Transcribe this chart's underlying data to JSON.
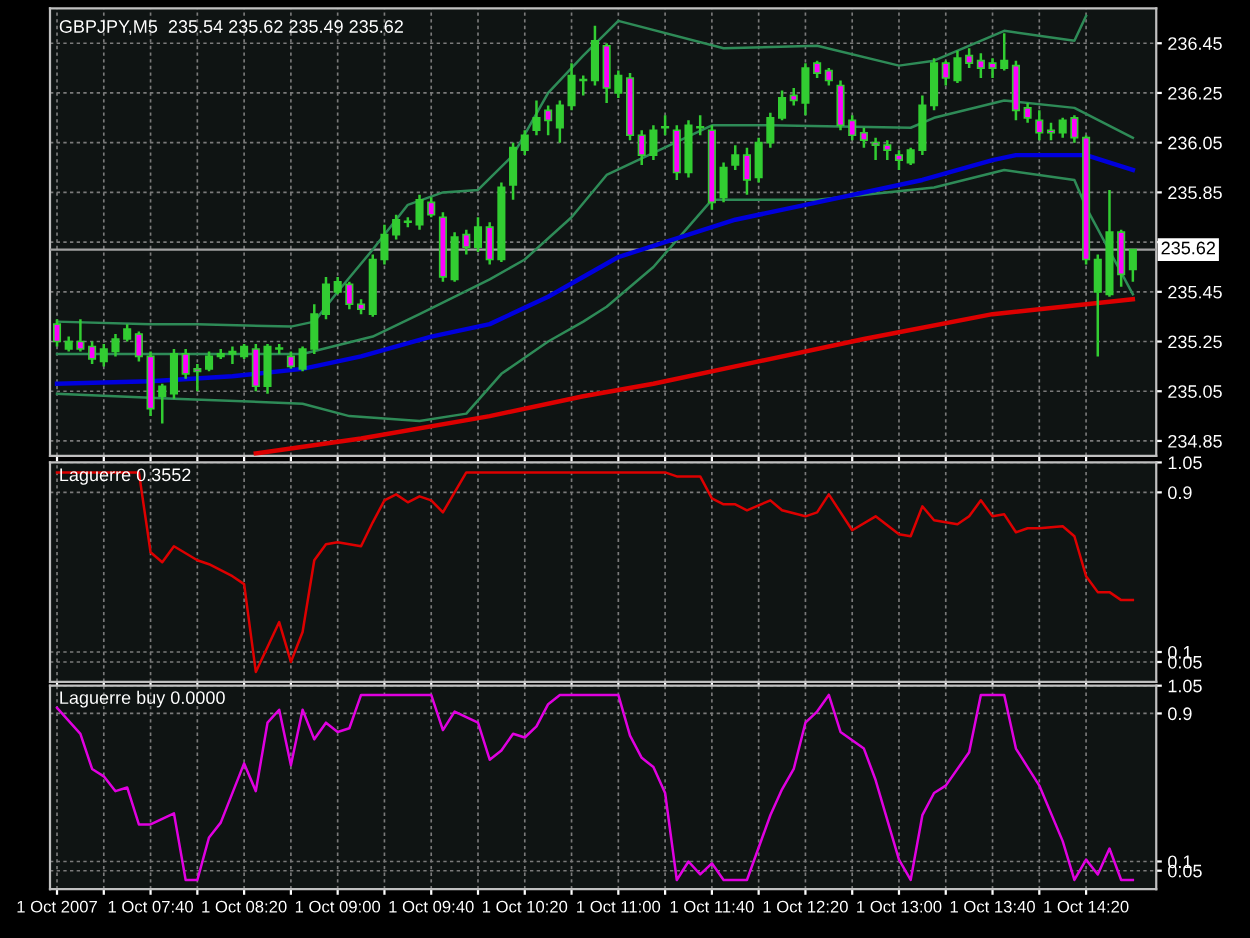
{
  "chart_data": [
    {
      "type": "candlestick",
      "title": "GBPJPY,M5  235.54 235.62 235.49 235.62",
      "tick_labels": "y",
      "grid": true,
      "x": [
        "2007-10-01T07:00",
        "2007-10-01T07:05",
        "2007-10-01T07:10",
        "2007-10-01T07:15",
        "2007-10-01T07:20",
        "2007-10-01T07:25",
        "2007-10-01T07:30",
        "2007-10-01T07:35",
        "2007-10-01T07:40",
        "2007-10-01T07:45",
        "2007-10-01T07:50",
        "2007-10-01T07:55",
        "2007-10-01T08:00",
        "2007-10-01T08:05",
        "2007-10-01T08:10",
        "2007-10-01T08:15",
        "2007-10-01T08:20",
        "2007-10-01T08:25",
        "2007-10-01T08:30",
        "2007-10-01T08:35",
        "2007-10-01T08:40",
        "2007-10-01T08:45",
        "2007-10-01T08:50",
        "2007-10-01T08:55",
        "2007-10-01T09:00",
        "2007-10-01T09:05",
        "2007-10-01T09:10",
        "2007-10-01T09:15",
        "2007-10-01T09:20",
        "2007-10-01T09:25",
        "2007-10-01T09:30",
        "2007-10-01T09:35",
        "2007-10-01T09:40",
        "2007-10-01T09:45",
        "2007-10-01T09:50",
        "2007-10-01T09:55",
        "2007-10-01T10:00",
        "2007-10-01T10:05",
        "2007-10-01T10:10",
        "2007-10-01T10:15",
        "2007-10-01T10:20",
        "2007-10-01T10:25",
        "2007-10-01T10:30",
        "2007-10-01T10:35",
        "2007-10-01T10:40",
        "2007-10-01T10:45",
        "2007-10-01T10:50",
        "2007-10-01T10:55",
        "2007-10-01T11:00",
        "2007-10-01T11:05",
        "2007-10-01T11:10",
        "2007-10-01T11:15",
        "2007-10-01T11:20",
        "2007-10-01T11:25",
        "2007-10-01T11:30",
        "2007-10-01T11:35",
        "2007-10-01T11:40",
        "2007-10-01T11:45",
        "2007-10-01T11:50",
        "2007-10-01T11:55",
        "2007-10-01T12:00",
        "2007-10-01T12:05",
        "2007-10-01T12:10",
        "2007-10-01T12:15",
        "2007-10-01T12:20",
        "2007-10-01T12:25",
        "2007-10-01T12:30",
        "2007-10-01T12:35",
        "2007-10-01T12:40",
        "2007-10-01T12:45",
        "2007-10-01T12:50",
        "2007-10-01T12:55",
        "2007-10-01T13:00",
        "2007-10-01T13:05",
        "2007-10-01T13:10",
        "2007-10-01T13:15",
        "2007-10-01T13:20",
        "2007-10-01T13:25",
        "2007-10-01T13:30",
        "2007-10-01T13:35",
        "2007-10-01T13:40",
        "2007-10-01T13:45",
        "2007-10-01T13:50",
        "2007-10-01T13:55",
        "2007-10-01T14:00",
        "2007-10-01T14:05",
        "2007-10-01T14:10",
        "2007-10-01T14:15",
        "2007-10-01T14:20",
        "2007-10-01T14:25",
        "2007-10-01T14:30",
        "2007-10-01T14:35",
        "2007-10-01T14:40"
      ],
      "ohlc": [
        [
          235.32,
          235.34,
          235.23,
          235.25
        ],
        [
          235.22,
          235.27,
          235.21,
          235.25
        ],
        [
          235.25,
          235.34,
          235.21,
          235.22
        ],
        [
          235.23,
          235.25,
          235.16,
          235.18
        ],
        [
          235.17,
          235.24,
          235.15,
          235.22
        ],
        [
          235.21,
          235.28,
          235.19,
          235.26
        ],
        [
          235.26,
          235.32,
          235.25,
          235.3
        ],
        [
          235.28,
          235.29,
          235.17,
          235.19
        ],
        [
          235.19,
          235.21,
          234.95,
          234.98
        ],
        [
          235.03,
          235.08,
          234.92,
          235.07
        ],
        [
          235.04,
          235.22,
          235.02,
          235.2
        ],
        [
          235.2,
          235.22,
          235.1,
          235.12
        ],
        [
          235.14,
          235.16,
          235.05,
          235.13
        ],
        [
          235.14,
          235.21,
          235.13,
          235.19
        ],
        [
          235.19,
          235.22,
          235.18,
          235.2
        ],
        [
          235.2,
          235.23,
          235.16,
          235.21
        ],
        [
          235.19,
          235.24,
          235.18,
          235.23
        ],
        [
          235.22,
          235.24,
          235.05,
          235.07
        ],
        [
          235.07,
          235.24,
          235.04,
          235.23
        ],
        [
          235.22,
          235.24,
          235.2,
          235.22
        ],
        [
          235.19,
          235.21,
          235.14,
          235.15
        ],
        [
          235.14,
          235.23,
          235.13,
          235.22
        ],
        [
          235.22,
          235.4,
          235.2,
          235.36
        ],
        [
          235.36,
          235.51,
          235.34,
          235.48
        ],
        [
          235.45,
          235.51,
          235.44,
          235.49
        ],
        [
          235.48,
          235.49,
          235.38,
          235.4
        ],
        [
          235.4,
          235.42,
          235.36,
          235.38
        ],
        [
          235.36,
          235.6,
          235.35,
          235.58
        ],
        [
          235.58,
          235.72,
          235.56,
          235.68
        ],
        [
          235.68,
          235.76,
          235.66,
          235.74
        ],
        [
          235.73,
          235.75,
          235.71,
          235.73
        ],
        [
          235.72,
          235.84,
          235.7,
          235.82
        ],
        [
          235.81,
          235.83,
          235.75,
          235.76
        ],
        [
          235.75,
          235.77,
          235.49,
          235.51
        ],
        [
          235.5,
          235.69,
          235.49,
          235.67
        ],
        [
          235.68,
          235.7,
          235.6,
          235.63
        ],
        [
          235.63,
          235.75,
          235.61,
          235.71
        ],
        [
          235.71,
          235.73,
          235.56,
          235.58
        ],
        [
          235.58,
          235.89,
          235.57,
          235.87
        ],
        [
          235.88,
          236.05,
          235.82,
          236.03
        ],
        [
          236.02,
          236.1,
          236.0,
          236.08
        ],
        [
          236.1,
          236.22,
          236.08,
          236.15
        ],
        [
          236.18,
          236.2,
          236.08,
          236.14
        ],
        [
          236.11,
          236.22,
          236.05,
          236.2
        ],
        [
          236.2,
          236.37,
          236.18,
          236.32
        ],
        [
          236.3,
          236.32,
          236.24,
          236.3
        ],
        [
          236.3,
          236.52,
          236.28,
          236.46
        ],
        [
          236.44,
          236.45,
          236.21,
          236.27
        ],
        [
          236.25,
          236.34,
          236.23,
          236.32
        ],
        [
          236.31,
          236.33,
          236.06,
          236.08
        ],
        [
          236.08,
          236.1,
          235.96,
          236.0
        ],
        [
          236.0,
          236.12,
          235.98,
          236.1
        ],
        [
          236.11,
          236.16,
          236.08,
          236.11
        ],
        [
          236.1,
          236.12,
          235.9,
          235.93
        ],
        [
          235.93,
          236.14,
          235.91,
          236.12
        ],
        [
          236.11,
          236.16,
          236.08,
          236.11
        ],
        [
          236.1,
          236.12,
          235.78,
          235.81
        ],
        [
          235.83,
          235.97,
          235.81,
          235.95
        ],
        [
          235.96,
          236.04,
          235.94,
          236.0
        ],
        [
          236.0,
          236.03,
          235.84,
          235.9
        ],
        [
          235.91,
          236.07,
          235.89,
          236.05
        ],
        [
          236.05,
          236.17,
          236.03,
          236.15
        ],
        [
          236.15,
          236.26,
          236.14,
          236.23
        ],
        [
          236.24,
          236.27,
          236.2,
          236.22
        ],
        [
          236.21,
          236.37,
          236.16,
          236.35
        ],
        [
          236.37,
          236.38,
          236.31,
          236.33
        ],
        [
          236.34,
          236.35,
          236.28,
          236.3
        ],
        [
          236.28,
          236.3,
          236.1,
          236.12
        ],
        [
          236.14,
          236.16,
          236.06,
          236.08
        ],
        [
          236.09,
          236.11,
          236.03,
          236.06
        ],
        [
          236.05,
          236.07,
          235.98,
          236.04
        ],
        [
          236.04,
          236.06,
          235.98,
          236.02
        ],
        [
          236.0,
          236.02,
          235.94,
          235.98
        ],
        [
          235.97,
          236.03,
          235.96,
          236.02
        ],
        [
          236.02,
          236.24,
          236.0,
          236.2
        ],
        [
          236.2,
          236.39,
          236.18,
          236.37
        ],
        [
          236.37,
          236.38,
          236.28,
          236.31
        ],
        [
          236.3,
          236.42,
          236.29,
          236.39
        ],
        [
          236.4,
          236.43,
          236.35,
          236.37
        ],
        [
          236.38,
          236.41,
          236.31,
          236.35
        ],
        [
          236.37,
          236.39,
          236.31,
          236.35
        ],
        [
          236.35,
          236.49,
          236.34,
          236.38
        ],
        [
          236.36,
          236.38,
          236.14,
          236.18
        ],
        [
          236.19,
          236.21,
          236.13,
          236.15
        ],
        [
          236.14,
          236.18,
          236.06,
          236.09
        ],
        [
          236.1,
          236.13,
          236.06,
          236.09
        ],
        [
          236.09,
          236.15,
          236.07,
          236.14
        ],
        [
          236.15,
          236.16,
          236.05,
          236.07
        ],
        [
          236.07,
          236.08,
          235.56,
          235.58
        ],
        [
          235.45,
          235.6,
          235.19,
          235.58
        ],
        [
          235.44,
          235.86,
          235.43,
          235.69
        ],
        [
          235.69,
          235.7,
          235.47,
          235.52
        ],
        [
          235.54,
          235.62,
          235.49,
          235.62
        ]
      ],
      "series": [
        {
          "type": "line",
          "color": "#2e8b57",
          "x": [
            "2007-10-01T07:00",
            "2007-10-01T07:40",
            "2007-10-01T08:00",
            "2007-10-01T08:40",
            "2007-10-01T08:50",
            "2007-10-01T09:00",
            "2007-10-01T09:15",
            "2007-10-01T09:30",
            "2007-10-01T09:45",
            "2007-10-01T10:00",
            "2007-10-01T10:15",
            "2007-10-01T10:30",
            "2007-10-01T10:45",
            "2007-10-01T11:00",
            "2007-10-01T11:45",
            "2007-10-01T12:25",
            "2007-10-01T13:00",
            "2007-10-01T13:15",
            "2007-10-01T13:45",
            "2007-10-01T14:15",
            "2007-10-01T14:20"
          ],
          "values": [
            235.33,
            235.32,
            235.32,
            235.31,
            235.33,
            235.45,
            235.62,
            235.8,
            235.85,
            235.86,
            236.0,
            236.25,
            236.4,
            236.54,
            236.43,
            236.44,
            236.36,
            236.38,
            236.5,
            236.46,
            236.56
          ]
        },
        {
          "type": "line",
          "color": "#2e8b57",
          "x": [
            "2007-10-01T07:00",
            "2007-10-01T07:50",
            "2007-10-01T08:45",
            "2007-10-01T09:15",
            "2007-10-01T09:35",
            "2007-10-01T10:05",
            "2007-10-01T10:20",
            "2007-10-01T10:40",
            "2007-10-01T10:55",
            "2007-10-01T11:40",
            "2007-10-01T12:05",
            "2007-10-01T13:05",
            "2007-10-01T13:15",
            "2007-10-01T13:45",
            "2007-10-01T14:15",
            "2007-10-01T14:40"
          ],
          "values": [
            235.2,
            235.2,
            235.2,
            235.27,
            235.36,
            235.5,
            235.58,
            235.75,
            235.92,
            236.12,
            236.12,
            236.11,
            236.15,
            236.22,
            236.19,
            236.07
          ]
        },
        {
          "type": "line",
          "color": "#2e8b57",
          "x": [
            "2007-10-01T07:00",
            "2007-10-01T07:50",
            "2007-10-01T08:45",
            "2007-10-01T09:05",
            "2007-10-01T09:35",
            "2007-10-01T09:55",
            "2007-10-01T10:10",
            "2007-10-01T10:30",
            "2007-10-01T10:45",
            "2007-10-01T10:55",
            "2007-10-01T11:15",
            "2007-10-01T11:40",
            "2007-10-01T12:25",
            "2007-10-01T13:15",
            "2007-10-01T13:45",
            "2007-10-01T14:15",
            "2007-10-01T14:20",
            "2007-10-01T14:40"
          ],
          "values": [
            235.04,
            235.02,
            235.0,
            234.95,
            234.93,
            234.96,
            235.12,
            235.25,
            235.33,
            235.39,
            235.55,
            235.82,
            235.82,
            235.87,
            235.94,
            235.9,
            235.79,
            235.44
          ]
        },
        {
          "type": "line",
          "color": "#0000dd",
          "x": [
            "2007-10-01T07:00",
            "2007-10-01T07:40",
            "2007-10-01T08:15",
            "2007-10-01T08:45",
            "2007-10-01T09:10",
            "2007-10-01T09:40",
            "2007-10-01T10:05",
            "2007-10-01T10:30",
            "2007-10-01T11:00",
            "2007-10-01T11:50",
            "2007-10-01T12:20",
            "2007-10-01T13:10",
            "2007-10-01T13:40",
            "2007-10-01T13:50",
            "2007-10-01T14:20",
            "2007-10-01T14:40"
          ],
          "values": [
            235.08,
            235.09,
            235.11,
            235.14,
            235.19,
            235.27,
            235.32,
            235.43,
            235.59,
            235.74,
            235.8,
            235.9,
            235.98,
            236.0,
            236.0,
            235.94
          ]
        },
        {
          "type": "line",
          "color": "#dd0000",
          "x": [
            "2007-10-01T08:25",
            "2007-10-01T09:10",
            "2007-10-01T10:05",
            "2007-10-01T10:45",
            "2007-10-01T11:15",
            "2007-10-01T11:50",
            "2007-10-01T12:45",
            "2007-10-01T13:40",
            "2007-10-01T14:20",
            "2007-10-01T14:40"
          ],
          "values": [
            234.8,
            234.86,
            234.95,
            235.03,
            235.08,
            235.15,
            235.26,
            235.36,
            235.4,
            235.42
          ]
        }
      ],
      "ref_lines": [
        {
          "axis": "y",
          "value": 235.62,
          "label": "235.62",
          "color": "#a0a0a0"
        }
      ],
      "xlim": [
        "2007-10-01T06:57",
        "2007-10-01T14:50"
      ],
      "ylim": [
        234.79,
        236.59
      ],
      "yticks": [
        236.45,
        236.25,
        236.05,
        235.85,
        {
          "value": 235.65,
          "label": null
        },
        235.45,
        235.25,
        235.05,
        234.85
      ],
      "xticks": [
        {
          "value": "2007-10-01T07:00",
          "label": null
        },
        {
          "value": "2007-10-01T07:20",
          "label": null
        },
        {
          "value": "2007-10-01T07:40",
          "label": null
        },
        {
          "value": "2007-10-01T08:00",
          "label": null
        },
        {
          "value": "2007-10-01T08:20",
          "label": null
        },
        {
          "value": "2007-10-01T08:40",
          "label": null
        },
        {
          "value": "2007-10-01T09:00",
          "label": null
        },
        {
          "value": "2007-10-01T09:20",
          "label": null
        },
        {
          "value": "2007-10-01T09:40",
          "label": null
        },
        {
          "value": "2007-10-01T10:00",
          "label": null
        },
        {
          "value": "2007-10-01T10:20",
          "label": null
        },
        {
          "value": "2007-10-01T10:40",
          "label": null
        },
        {
          "value": "2007-10-01T11:00",
          "label": null
        },
        {
          "value": "2007-10-01T11:20",
          "label": null
        },
        {
          "value": "2007-10-01T11:40",
          "label": null
        },
        {
          "value": "2007-10-01T12:00",
          "label": null
        },
        {
          "value": "2007-10-01T12:20",
          "label": null
        },
        {
          "value": "2007-10-01T12:40",
          "label": null
        },
        {
          "value": "2007-10-01T13:00",
          "label": null
        },
        {
          "value": "2007-10-01T13:20",
          "label": null
        },
        {
          "value": "2007-10-01T13:40",
          "label": null
        },
        {
          "value": "2007-10-01T14:00",
          "label": null
        },
        {
          "value": "2007-10-01T14:20",
          "label": null
        }
      ]
    },
    {
      "type": "line",
      "title": "Laguerre 0.3552",
      "tick_labels": "y",
      "grid": true,
      "series": [
        {
          "color": "#dd0000",
          "x": [
            "2007-10-01T07:00",
            "2007-10-01T07:35",
            "2007-10-01T07:40",
            "2007-10-01T07:45",
            "2007-10-01T07:50",
            "2007-10-01T08:00",
            "2007-10-01T08:05",
            "2007-10-01T08:15",
            "2007-10-01T08:20",
            "2007-10-01T08:25",
            "2007-10-01T08:35",
            "2007-10-01T08:40",
            "2007-10-01T08:45",
            "2007-10-01T08:50",
            "2007-10-01T08:55",
            "2007-10-01T09:00",
            "2007-10-01T09:10",
            "2007-10-01T09:15",
            "2007-10-01T09:20",
            "2007-10-01T09:25",
            "2007-10-01T09:30",
            "2007-10-01T09:35",
            "2007-10-01T09:40",
            "2007-10-01T09:45",
            "2007-10-01T09:55",
            "2007-10-01T11:20",
            "2007-10-01T11:25",
            "2007-10-01T11:35",
            "2007-10-01T11:40",
            "2007-10-01T11:45",
            "2007-10-01T11:50",
            "2007-10-01T11:55",
            "2007-10-01T12:05",
            "2007-10-01T12:10",
            "2007-10-01T12:20",
            "2007-10-01T12:25",
            "2007-10-01T12:30",
            "2007-10-01T12:40",
            "2007-10-01T12:50",
            "2007-10-01T13:00",
            "2007-10-01T13:05",
            "2007-10-01T13:10",
            "2007-10-01T13:15",
            "2007-10-01T13:25",
            "2007-10-01T13:30",
            "2007-10-01T13:35",
            "2007-10-01T13:40",
            "2007-10-01T13:45",
            "2007-10-01T13:50",
            "2007-10-01T13:55",
            "2007-10-01T14:00",
            "2007-10-01T14:10",
            "2007-10-01T14:15",
            "2007-10-01T14:20",
            "2007-10-01T14:25",
            "2007-10-01T14:30",
            "2007-10-01T14:35",
            "2007-10-01T14:40"
          ],
          "values": [
            1.0,
            1.0,
            0.6,
            0.55,
            0.63,
            0.56,
            0.54,
            0.48,
            0.44,
            0.0,
            0.25,
            0.05,
            0.2,
            0.56,
            0.64,
            0.65,
            0.63,
            0.75,
            0.86,
            0.89,
            0.85,
            0.88,
            0.86,
            0.8,
            1.0,
            1.0,
            0.98,
            0.98,
            0.87,
            0.84,
            0.84,
            0.81,
            0.86,
            0.81,
            0.78,
            0.8,
            0.89,
            0.71,
            0.78,
            0.69,
            0.68,
            0.83,
            0.76,
            0.74,
            0.78,
            0.86,
            0.78,
            0.79,
            0.7,
            0.72,
            0.72,
            0.73,
            0.68,
            0.48,
            0.4,
            0.4,
            0.36,
            0.36
          ]
        }
      ],
      "xlim": [
        "2007-10-01T06:57",
        "2007-10-01T14:50"
      ],
      "ylim": [
        -0.05,
        1.05
      ],
      "yticks": [
        1.05,
        0.9,
        0.1,
        0.05
      ],
      "xticks": [
        {
          "value": "2007-10-01T07:00",
          "label": null
        },
        {
          "value": "2007-10-01T07:20",
          "label": null
        },
        {
          "value": "2007-10-01T07:40",
          "label": null
        },
        {
          "value": "2007-10-01T08:00",
          "label": null
        },
        {
          "value": "2007-10-01T08:20",
          "label": null
        },
        {
          "value": "2007-10-01T08:40",
          "label": null
        },
        {
          "value": "2007-10-01T09:00",
          "label": null
        },
        {
          "value": "2007-10-01T09:20",
          "label": null
        },
        {
          "value": "2007-10-01T09:40",
          "label": null
        },
        {
          "value": "2007-10-01T10:00",
          "label": null
        },
        {
          "value": "2007-10-01T10:20",
          "label": null
        },
        {
          "value": "2007-10-01T10:40",
          "label": null
        },
        {
          "value": "2007-10-01T11:00",
          "label": null
        },
        {
          "value": "2007-10-01T11:20",
          "label": null
        },
        {
          "value": "2007-10-01T11:40",
          "label": null
        },
        {
          "value": "2007-10-01T12:00",
          "label": null
        },
        {
          "value": "2007-10-01T12:20",
          "label": null
        },
        {
          "value": "2007-10-01T12:40",
          "label": null
        },
        {
          "value": "2007-10-01T13:00",
          "label": null
        },
        {
          "value": "2007-10-01T13:20",
          "label": null
        },
        {
          "value": "2007-10-01T13:40",
          "label": null
        },
        {
          "value": "2007-10-01T14:00",
          "label": null
        },
        {
          "value": "2007-10-01T14:20",
          "label": null
        }
      ]
    },
    {
      "type": "line",
      "title": "Laguerre buy 0.0000",
      "grid": true,
      "series": [
        {
          "color": "#e000e0",
          "x": [
            "2007-10-01T07:00",
            "2007-10-01T07:10",
            "2007-10-01T07:15",
            "2007-10-01T07:20",
            "2007-10-01T07:25",
            "2007-10-01T07:30",
            "2007-10-01T07:35",
            "2007-10-01T07:40",
            "2007-10-01T07:50",
            "2007-10-01T07:55",
            "2007-10-01T08:00",
            "2007-10-01T08:05",
            "2007-10-01T08:10",
            "2007-10-01T08:20",
            "2007-10-01T08:25",
            "2007-10-01T08:30",
            "2007-10-01T08:35",
            "2007-10-01T08:40",
            "2007-10-01T08:45",
            "2007-10-01T08:50",
            "2007-10-01T08:55",
            "2007-10-01T09:00",
            "2007-10-01T09:05",
            "2007-10-01T09:10",
            "2007-10-01T09:40",
            "2007-10-01T09:45",
            "2007-10-01T09:50",
            "2007-10-01T10:00",
            "2007-10-01T10:05",
            "2007-10-01T10:10",
            "2007-10-01T10:15",
            "2007-10-01T10:20",
            "2007-10-01T10:25",
            "2007-10-01T10:30",
            "2007-10-01T10:35",
            "2007-10-01T11:00",
            "2007-10-01T11:05",
            "2007-10-01T11:10",
            "2007-10-01T11:15",
            "2007-10-01T11:20",
            "2007-10-01T11:25",
            "2007-10-01T11:30",
            "2007-10-01T11:35",
            "2007-10-01T11:40",
            "2007-10-01T11:45",
            "2007-10-01T11:55",
            "2007-10-01T12:05",
            "2007-10-01T12:10",
            "2007-10-01T12:15",
            "2007-10-01T12:20",
            "2007-10-01T12:25",
            "2007-10-01T12:30",
            "2007-10-01T12:35",
            "2007-10-01T12:45",
            "2007-10-01T12:50",
            "2007-10-01T13:00",
            "2007-10-01T13:05",
            "2007-10-01T13:10",
            "2007-10-01T13:15",
            "2007-10-01T13:20",
            "2007-10-01T13:30",
            "2007-10-01T13:35",
            "2007-10-01T13:45",
            "2007-10-01T13:50",
            "2007-10-01T13:55",
            "2007-10-01T14:00",
            "2007-10-01T14:10",
            "2007-10-01T14:15",
            "2007-10-01T14:20",
            "2007-10-01T14:25",
            "2007-10-01T14:30",
            "2007-10-01T14:35",
            "2007-10-01T14:40"
          ],
          "values": [
            0.93,
            0.79,
            0.6,
            0.56,
            0.48,
            0.5,
            0.3,
            0.3,
            0.36,
            0.0,
            0.0,
            0.23,
            0.31,
            0.63,
            0.48,
            0.85,
            0.92,
            0.62,
            0.92,
            0.76,
            0.85,
            0.8,
            0.82,
            1.0,
            1.0,
            0.81,
            0.91,
            0.85,
            0.65,
            0.7,
            0.79,
            0.77,
            0.83,
            0.95,
            1.0,
            1.0,
            0.78,
            0.66,
            0.61,
            0.47,
            0.0,
            0.1,
            0.03,
            0.09,
            0.0,
            0.0,
            0.35,
            0.49,
            0.6,
            0.85,
            0.91,
            1.0,
            0.8,
            0.71,
            0.54,
            0.11,
            0.0,
            0.35,
            0.47,
            0.51,
            0.69,
            1.0,
            1.0,
            0.71,
            0.61,
            0.51,
            0.21,
            0.0,
            0.11,
            0.03,
            0.17,
            0.0,
            0.0
          ]
        }
      ],
      "xlim": [
        "2007-10-01T06:57",
        "2007-10-01T14:50"
      ],
      "ylim": [
        -0.05,
        1.05
      ],
      "yticks": [
        1.05,
        0.9,
        0.1,
        0.05
      ],
      "xticks": [
        {
          "value": "2007-10-01T07:00",
          "label": "1 Oct 2007"
        },
        {
          "value": "2007-10-01T07:20",
          "label": null
        },
        {
          "value": "2007-10-01T07:40",
          "label": "1 Oct 07:40"
        },
        {
          "value": "2007-10-01T08:00",
          "label": null
        },
        {
          "value": "2007-10-01T08:20",
          "label": "1 Oct 08:20"
        },
        {
          "value": "2007-10-01T08:40",
          "label": null
        },
        {
          "value": "2007-10-01T09:00",
          "label": "1 Oct 09:00"
        },
        {
          "value": "2007-10-01T09:20",
          "label": null
        },
        {
          "value": "2007-10-01T09:40",
          "label": "1 Oct 09:40"
        },
        {
          "value": "2007-10-01T10:00",
          "label": null
        },
        {
          "value": "2007-10-01T10:20",
          "label": "1 Oct 10:20"
        },
        {
          "value": "2007-10-01T10:40",
          "label": null
        },
        {
          "value": "2007-10-01T11:00",
          "label": "1 Oct 11:00"
        },
        {
          "value": "2007-10-01T11:20",
          "label": null
        },
        {
          "value": "2007-10-01T11:40",
          "label": "1 Oct 11:40"
        },
        {
          "value": "2007-10-01T12:00",
          "label": null
        },
        {
          "value": "2007-10-01T12:20",
          "label": "1 Oct 12:20"
        },
        {
          "value": "2007-10-01T12:40",
          "label": null
        },
        {
          "value": "2007-10-01T13:00",
          "label": "1 Oct 13:00"
        },
        {
          "value": "2007-10-01T13:20",
          "label": null
        },
        {
          "value": "2007-10-01T13:40",
          "label": "1 Oct 13:40"
        },
        {
          "value": "2007-10-01T14:00",
          "label": null
        },
        {
          "value": "2007-10-01T14:20",
          "label": "1 Oct 14:20"
        }
      ]
    }
  ]
}
